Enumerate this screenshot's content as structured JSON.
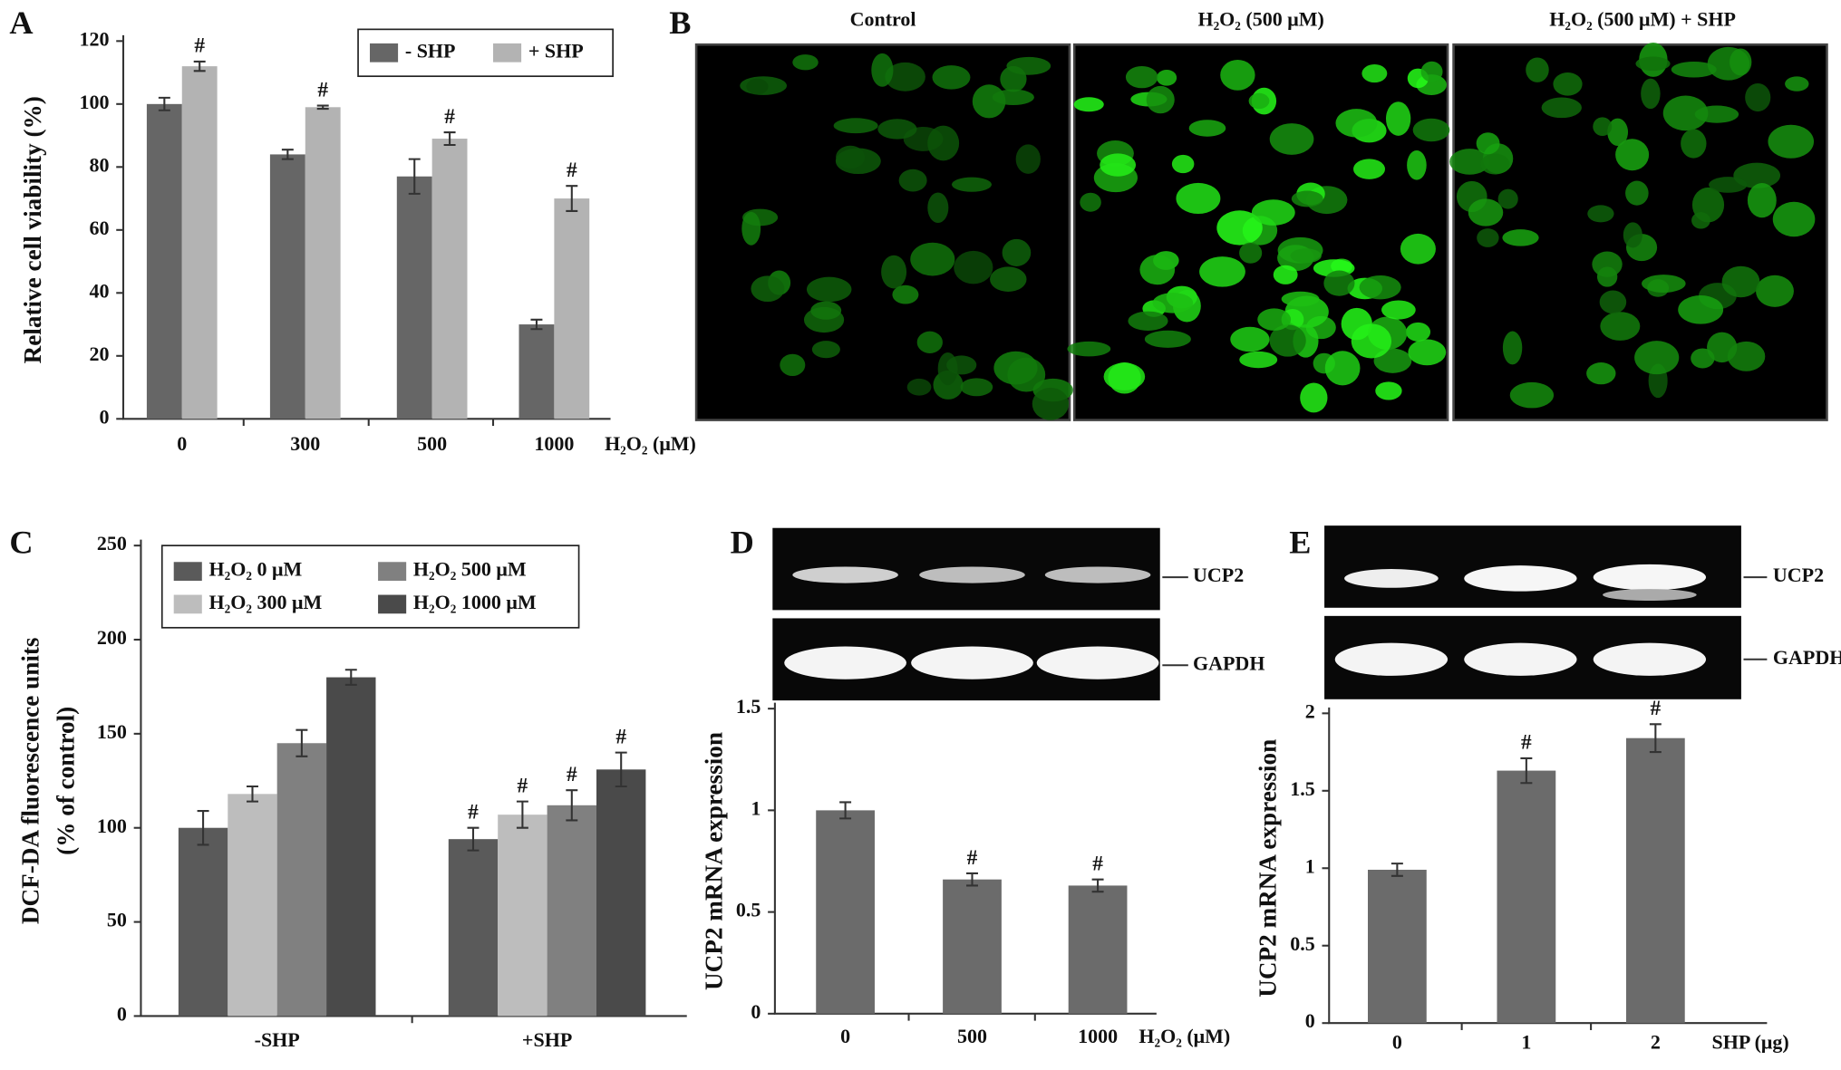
{
  "chart_data": [
    {
      "type": "bar",
      "panel_label": "A",
      "y_label": "Relative cell viability (%)",
      "x_label": "H₂O₂  (μM)",
      "categories": [
        "0",
        "300",
        "500",
        "1000"
      ],
      "series": [
        {
          "name": "- SHP",
          "color": "#666666",
          "values": [
            100,
            84,
            77,
            30
          ],
          "errors": [
            2,
            1.5,
            5.5,
            1.5
          ],
          "significance": [
            null,
            null,
            null,
            null
          ]
        },
        {
          "name": "+ SHP",
          "color": "#b3b3b3",
          "values": [
            112,
            99,
            89,
            70
          ],
          "errors": [
            1.5,
            0.5,
            2,
            4
          ],
          "significance": [
            "#",
            "#",
            "#",
            "#"
          ]
        }
      ],
      "ylim": [
        0,
        120
      ],
      "yticks": [
        0,
        20,
        40,
        60,
        80,
        100,
        120
      ]
    },
    {
      "type": "bar",
      "panel_label": "C",
      "y_label": [
        "DCF-DA fluorescence units",
        "(% of control)"
      ],
      "categories": [
        "-SHP",
        "+SHP"
      ],
      "series": [
        {
          "name": "H₂O₂ 0 μM",
          "color": "#5a5a5a",
          "values": [
            100,
            94
          ],
          "errors": [
            9,
            6
          ],
          "significance": [
            null,
            "#"
          ]
        },
        {
          "name": "H₂O₂ 300 μM",
          "color": "#bdbdbd",
          "values": [
            118,
            107
          ],
          "errors": [
            4,
            7
          ],
          "significance": [
            null,
            "#"
          ]
        },
        {
          "name": "H₂O₂ 500 μM",
          "color": "#808080",
          "values": [
            145,
            112
          ],
          "errors": [
            7,
            8
          ],
          "significance": [
            null,
            "#"
          ]
        },
        {
          "name": "H₂O₂ 1000 μM",
          "color": "#4a4a4a",
          "values": [
            180,
            131
          ],
          "errors": [
            4,
            9
          ],
          "significance": [
            null,
            "#"
          ]
        }
      ],
      "ylim": [
        0,
        250
      ],
      "yticks": [
        0,
        50,
        100,
        150,
        200,
        250
      ]
    },
    {
      "type": "bar",
      "panel_label": "D",
      "y_label": "UCP2 mRNA expression",
      "x_label": "H₂O₂ (μM)",
      "gel_labels": [
        "UCP2",
        "GAPDH"
      ],
      "categories": [
        "0",
        "500",
        "1000"
      ],
      "series": [
        {
          "color": "#6b6b6b",
          "values": [
            1.0,
            0.66,
            0.63
          ],
          "errors": [
            0.04,
            0.03,
            0.03
          ],
          "significance": [
            null,
            "#",
            "#"
          ]
        }
      ],
      "ylim": [
        0,
        1.5
      ],
      "yticks": [
        0,
        0.5,
        1,
        1.5
      ]
    },
    {
      "type": "bar",
      "panel_label": "E",
      "y_label": "UCP2 mRNA expression",
      "x_label": "SHP (μg)",
      "gel_labels": [
        "UCP2",
        "GAPDH"
      ],
      "categories": [
        "0",
        "1",
        "2"
      ],
      "series": [
        {
          "color": "#6b6b6b",
          "values": [
            0.99,
            1.63,
            1.84
          ],
          "errors": [
            0.04,
            0.08,
            0.09
          ],
          "significance": [
            null,
            "#",
            "#"
          ]
        }
      ],
      "ylim": [
        0,
        2
      ],
      "yticks": [
        0,
        0.5,
        1,
        1.5,
        2
      ]
    }
  ],
  "figure_b": {
    "panel_label": "B",
    "titles": [
      "Control",
      "H₂O₂ (500 μM)",
      "H₂O₂ (500 μM) + SHP"
    ]
  }
}
